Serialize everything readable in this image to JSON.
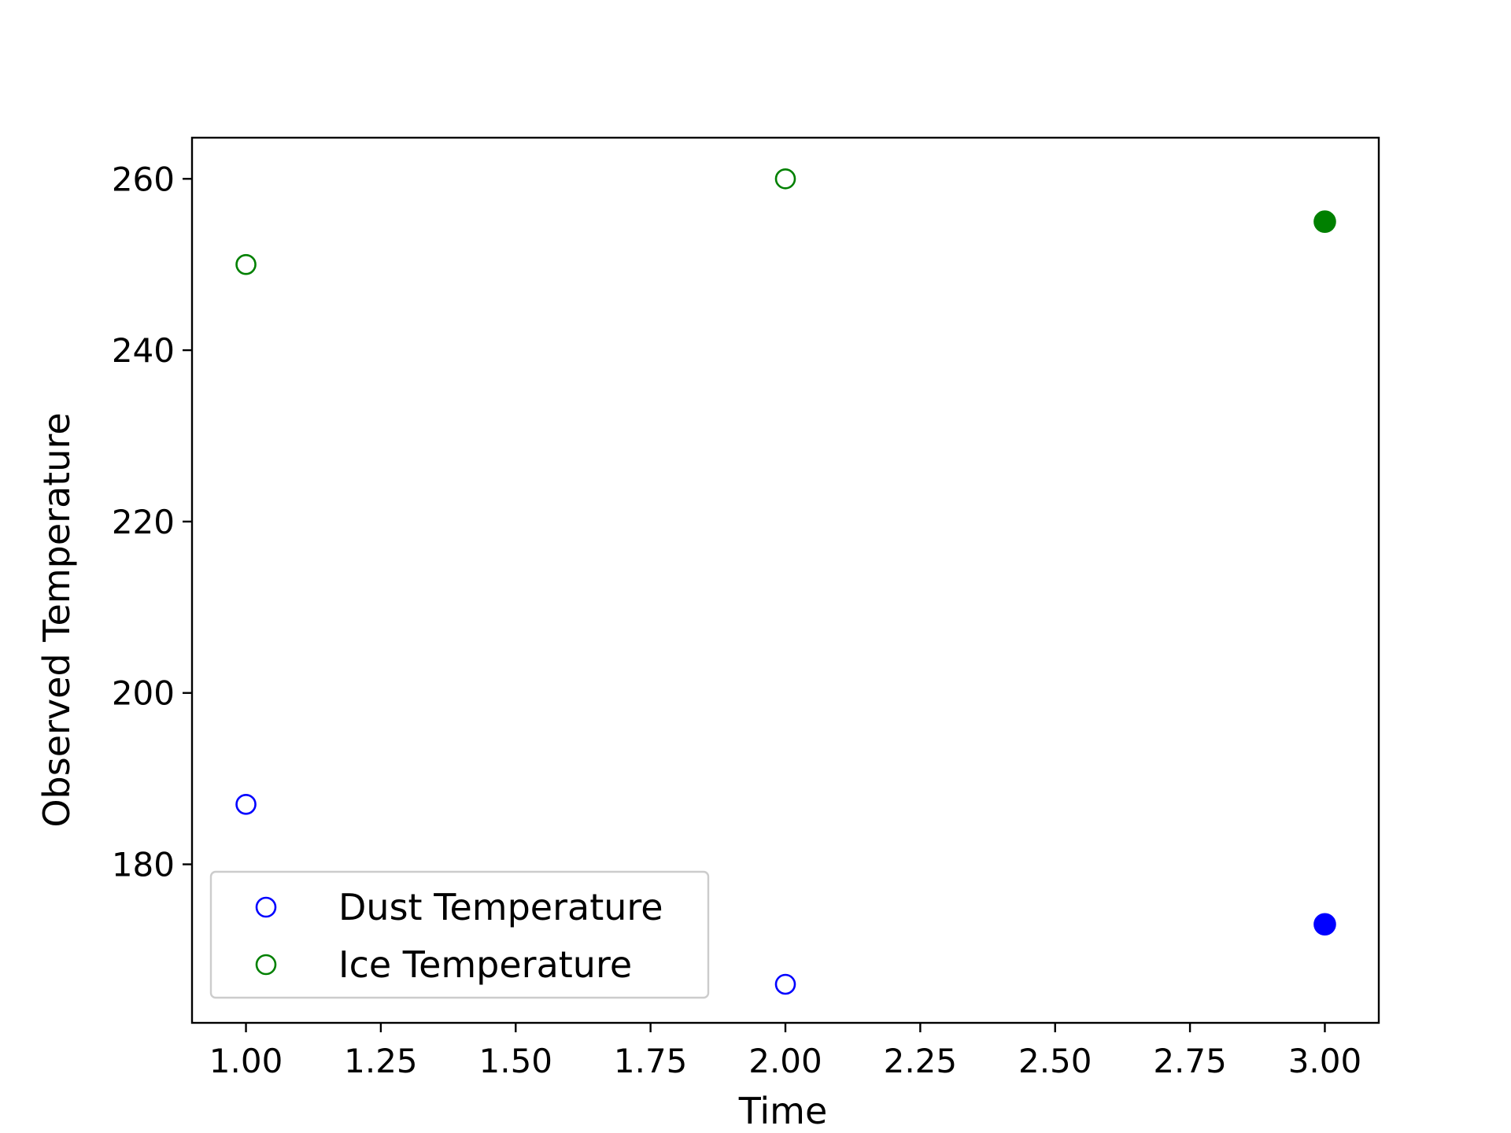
{
  "chart_data": {
    "type": "scatter",
    "title": "",
    "xlabel": "Time",
    "ylabel": "Observed Temperature",
    "xlim": [
      0.9,
      3.1
    ],
    "ylim": [
      161.5,
      264.8
    ],
    "x_ticks": [
      1.0,
      1.25,
      1.5,
      1.75,
      2.0,
      2.25,
      2.5,
      2.75,
      3.0
    ],
    "x_tick_labels": [
      "1.00",
      "1.25",
      "1.50",
      "1.75",
      "2.00",
      "2.25",
      "2.50",
      "2.75",
      "3.00"
    ],
    "y_ticks": [
      180,
      200,
      220,
      240,
      260
    ],
    "y_tick_labels": [
      "180",
      "200",
      "220",
      "240",
      "260"
    ],
    "grid": false,
    "legend_position": "lower-left",
    "series": [
      {
        "name": "Dust Temperature",
        "color": "#0000ff",
        "marker": "circle-open",
        "points": [
          {
            "x": 1.0,
            "y": 187,
            "filled": false
          },
          {
            "x": 2.0,
            "y": 166,
            "filled": false
          },
          {
            "x": 3.0,
            "y": 173,
            "filled": true
          }
        ]
      },
      {
        "name": "Ice Temperature",
        "color": "#008000",
        "marker": "circle-open",
        "points": [
          {
            "x": 1.0,
            "y": 250,
            "filled": false
          },
          {
            "x": 2.0,
            "y": 260,
            "filled": false
          },
          {
            "x": 3.0,
            "y": 255,
            "filled": true
          }
        ]
      }
    ]
  }
}
